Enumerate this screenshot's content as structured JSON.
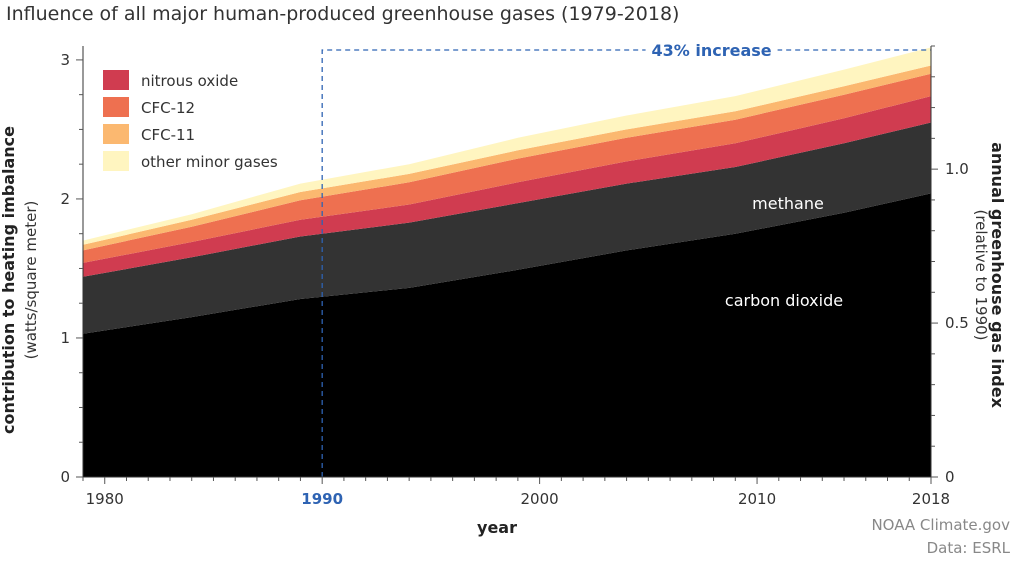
{
  "chart_data": {
    "type": "area",
    "title": "Influence of all major human-produced greenhouse gases (1979-2018)",
    "xlabel": "year",
    "ylabel": "contribution to heating imbalance",
    "ylabel_sub": "(watts/square meter)",
    "y2label": "annual greenhouse gas index",
    "y2label_sub": "(relative to 1990)",
    "xlim": [
      1979,
      2018
    ],
    "ylim": [
      0,
      3.1
    ],
    "y2lim": [
      0,
      1.4
    ],
    "x_ticks": [
      "1980",
      "1990",
      "2000",
      "2010",
      "2018"
    ],
    "x_tick_values": [
      1980,
      1990,
      2000,
      2010,
      2018
    ],
    "highlight_tick": "1990",
    "y_ticks": [
      "0",
      "1",
      "2",
      "3"
    ],
    "y_tick_values": [
      0,
      1,
      2,
      3
    ],
    "y2_ticks": [
      "0",
      "0.5",
      "1.0"
    ],
    "y2_tick_values": [
      0,
      0.5,
      1.0
    ],
    "grid": false,
    "legend_position": "top-left",
    "legend": [
      "nitrous oxide",
      "CFC-12",
      "CFC-11",
      "other minor gases"
    ],
    "x": [
      1979,
      1984,
      1989,
      1994,
      1999,
      2004,
      2009,
      2014,
      2018
    ],
    "series": [
      {
        "name": "carbon dioxide",
        "color": "#000000",
        "values": [
          1.03,
          1.15,
          1.28,
          1.36,
          1.49,
          1.63,
          1.75,
          1.9,
          2.04
        ]
      },
      {
        "name": "methane",
        "color": "#333333",
        "values": [
          0.41,
          0.43,
          0.45,
          0.47,
          0.48,
          0.48,
          0.48,
          0.5,
          0.51
        ]
      },
      {
        "name": "nitrous oxide",
        "color": "#d03c50",
        "values": [
          0.1,
          0.11,
          0.12,
          0.13,
          0.15,
          0.16,
          0.17,
          0.18,
          0.19
        ]
      },
      {
        "name": "CFC-12",
        "color": "#ee7050",
        "values": [
          0.09,
          0.11,
          0.14,
          0.16,
          0.17,
          0.17,
          0.17,
          0.17,
          0.16
        ]
      },
      {
        "name": "CFC-11",
        "color": "#fbb870",
        "values": [
          0.04,
          0.05,
          0.06,
          0.06,
          0.06,
          0.06,
          0.06,
          0.06,
          0.06
        ]
      },
      {
        "name": "other minor gases",
        "color": "#fff5c0",
        "values": [
          0.03,
          0.04,
          0.06,
          0.07,
          0.09,
          0.1,
          0.11,
          0.12,
          0.13
        ]
      }
    ],
    "annotations": {
      "methane": "methane",
      "carbon_dioxide": "carbon dioxide",
      "increase": "43% increase"
    },
    "reference_year": 1990,
    "reference_color": "#2e63b3"
  },
  "credit": {
    "line1": "NOAA Climate.gov",
    "line2": "Data: ESRL"
  }
}
